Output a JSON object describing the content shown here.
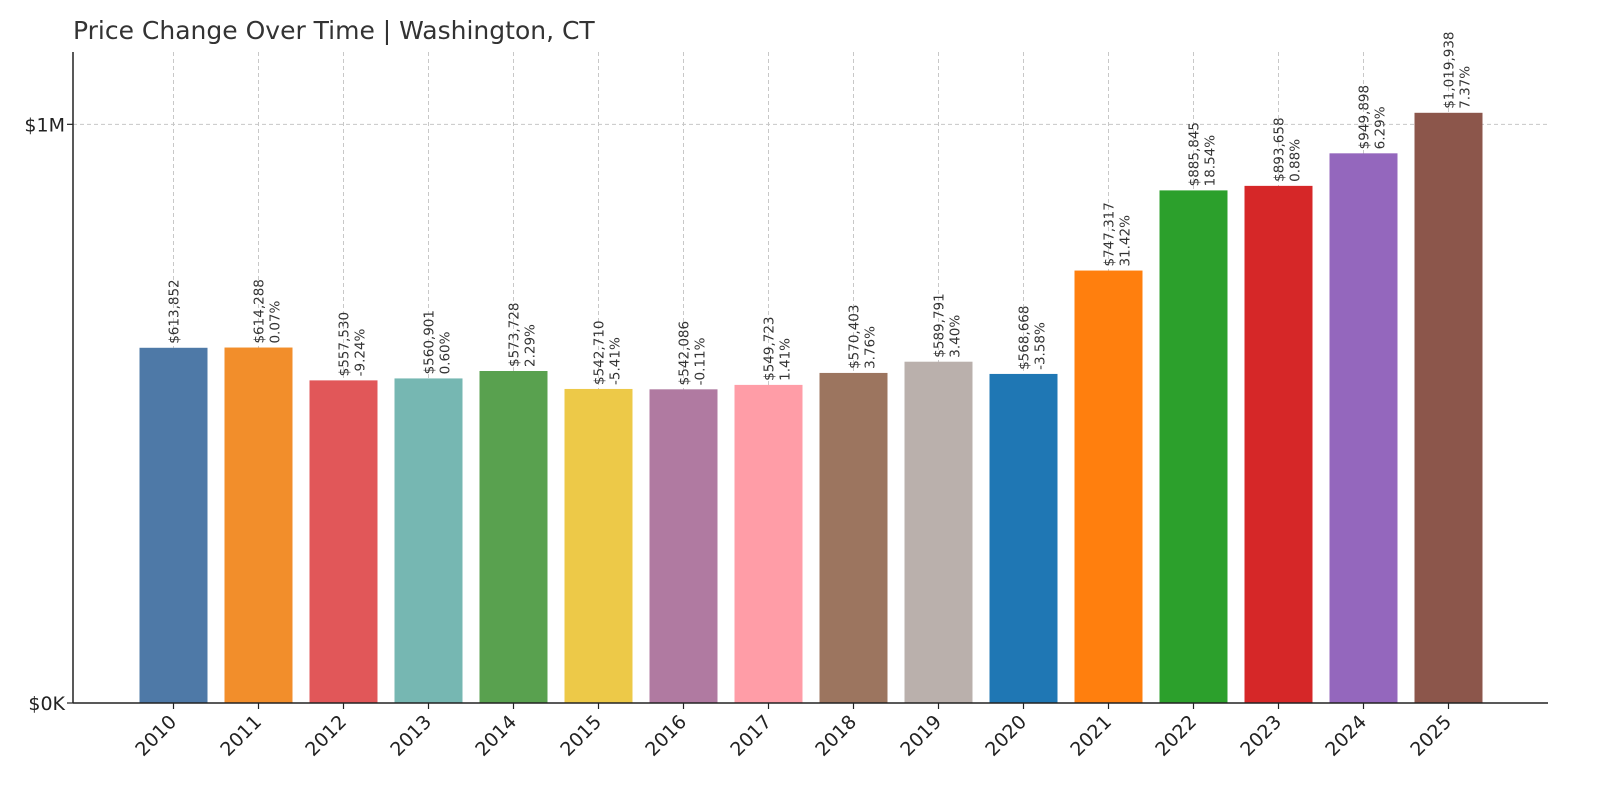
{
  "chart_data": {
    "type": "bar",
    "title": "Price Change Over Time | Washington, CT",
    "xlabel": "",
    "ylabel": "",
    "ylim": [
      0,
      1125000
    ],
    "y_ticks": [
      {
        "value": 0,
        "label": "$0K"
      },
      {
        "value": 1000000,
        "label": "$1M"
      }
    ],
    "grid": true,
    "categories": [
      "2010",
      "2011",
      "2012",
      "2013",
      "2014",
      "2015",
      "2016",
      "2017",
      "2018",
      "2019",
      "2020",
      "2021",
      "2022",
      "2023",
      "2024",
      "2025"
    ],
    "values": [
      613852,
      614288,
      557530,
      560901,
      573728,
      542710,
      542086,
      549723,
      570403,
      589791,
      568668,
      747317,
      885845,
      893658,
      949898,
      1019938
    ],
    "value_labels": [
      "$613,852",
      "$614,288",
      "$557,530",
      "$560,901",
      "$573,728",
      "$542,710",
      "$542,086",
      "$549,723",
      "$570,403",
      "$589,791",
      "$568,668",
      "$747,317",
      "$885,845",
      "$893,658",
      "$949,898",
      "$1,019,938"
    ],
    "change_labels": [
      "",
      "0.07%",
      "-9.24%",
      "0.60%",
      "2.29%",
      "-5.41%",
      "-0.11%",
      "1.41%",
      "3.76%",
      "3.40%",
      "-3.58%",
      "31.42%",
      "18.54%",
      "0.88%",
      "6.29%",
      "7.37%"
    ],
    "colors": [
      "#4e79a7",
      "#f28e2b",
      "#e15759",
      "#76b7b2",
      "#59a14f",
      "#edc948",
      "#b07aa1",
      "#ff9da7",
      "#9c755f",
      "#bab0ac",
      "#1f77b4",
      "#ff7f0e",
      "#2ca02c",
      "#d62728",
      "#9467bd",
      "#8c564b"
    ]
  }
}
